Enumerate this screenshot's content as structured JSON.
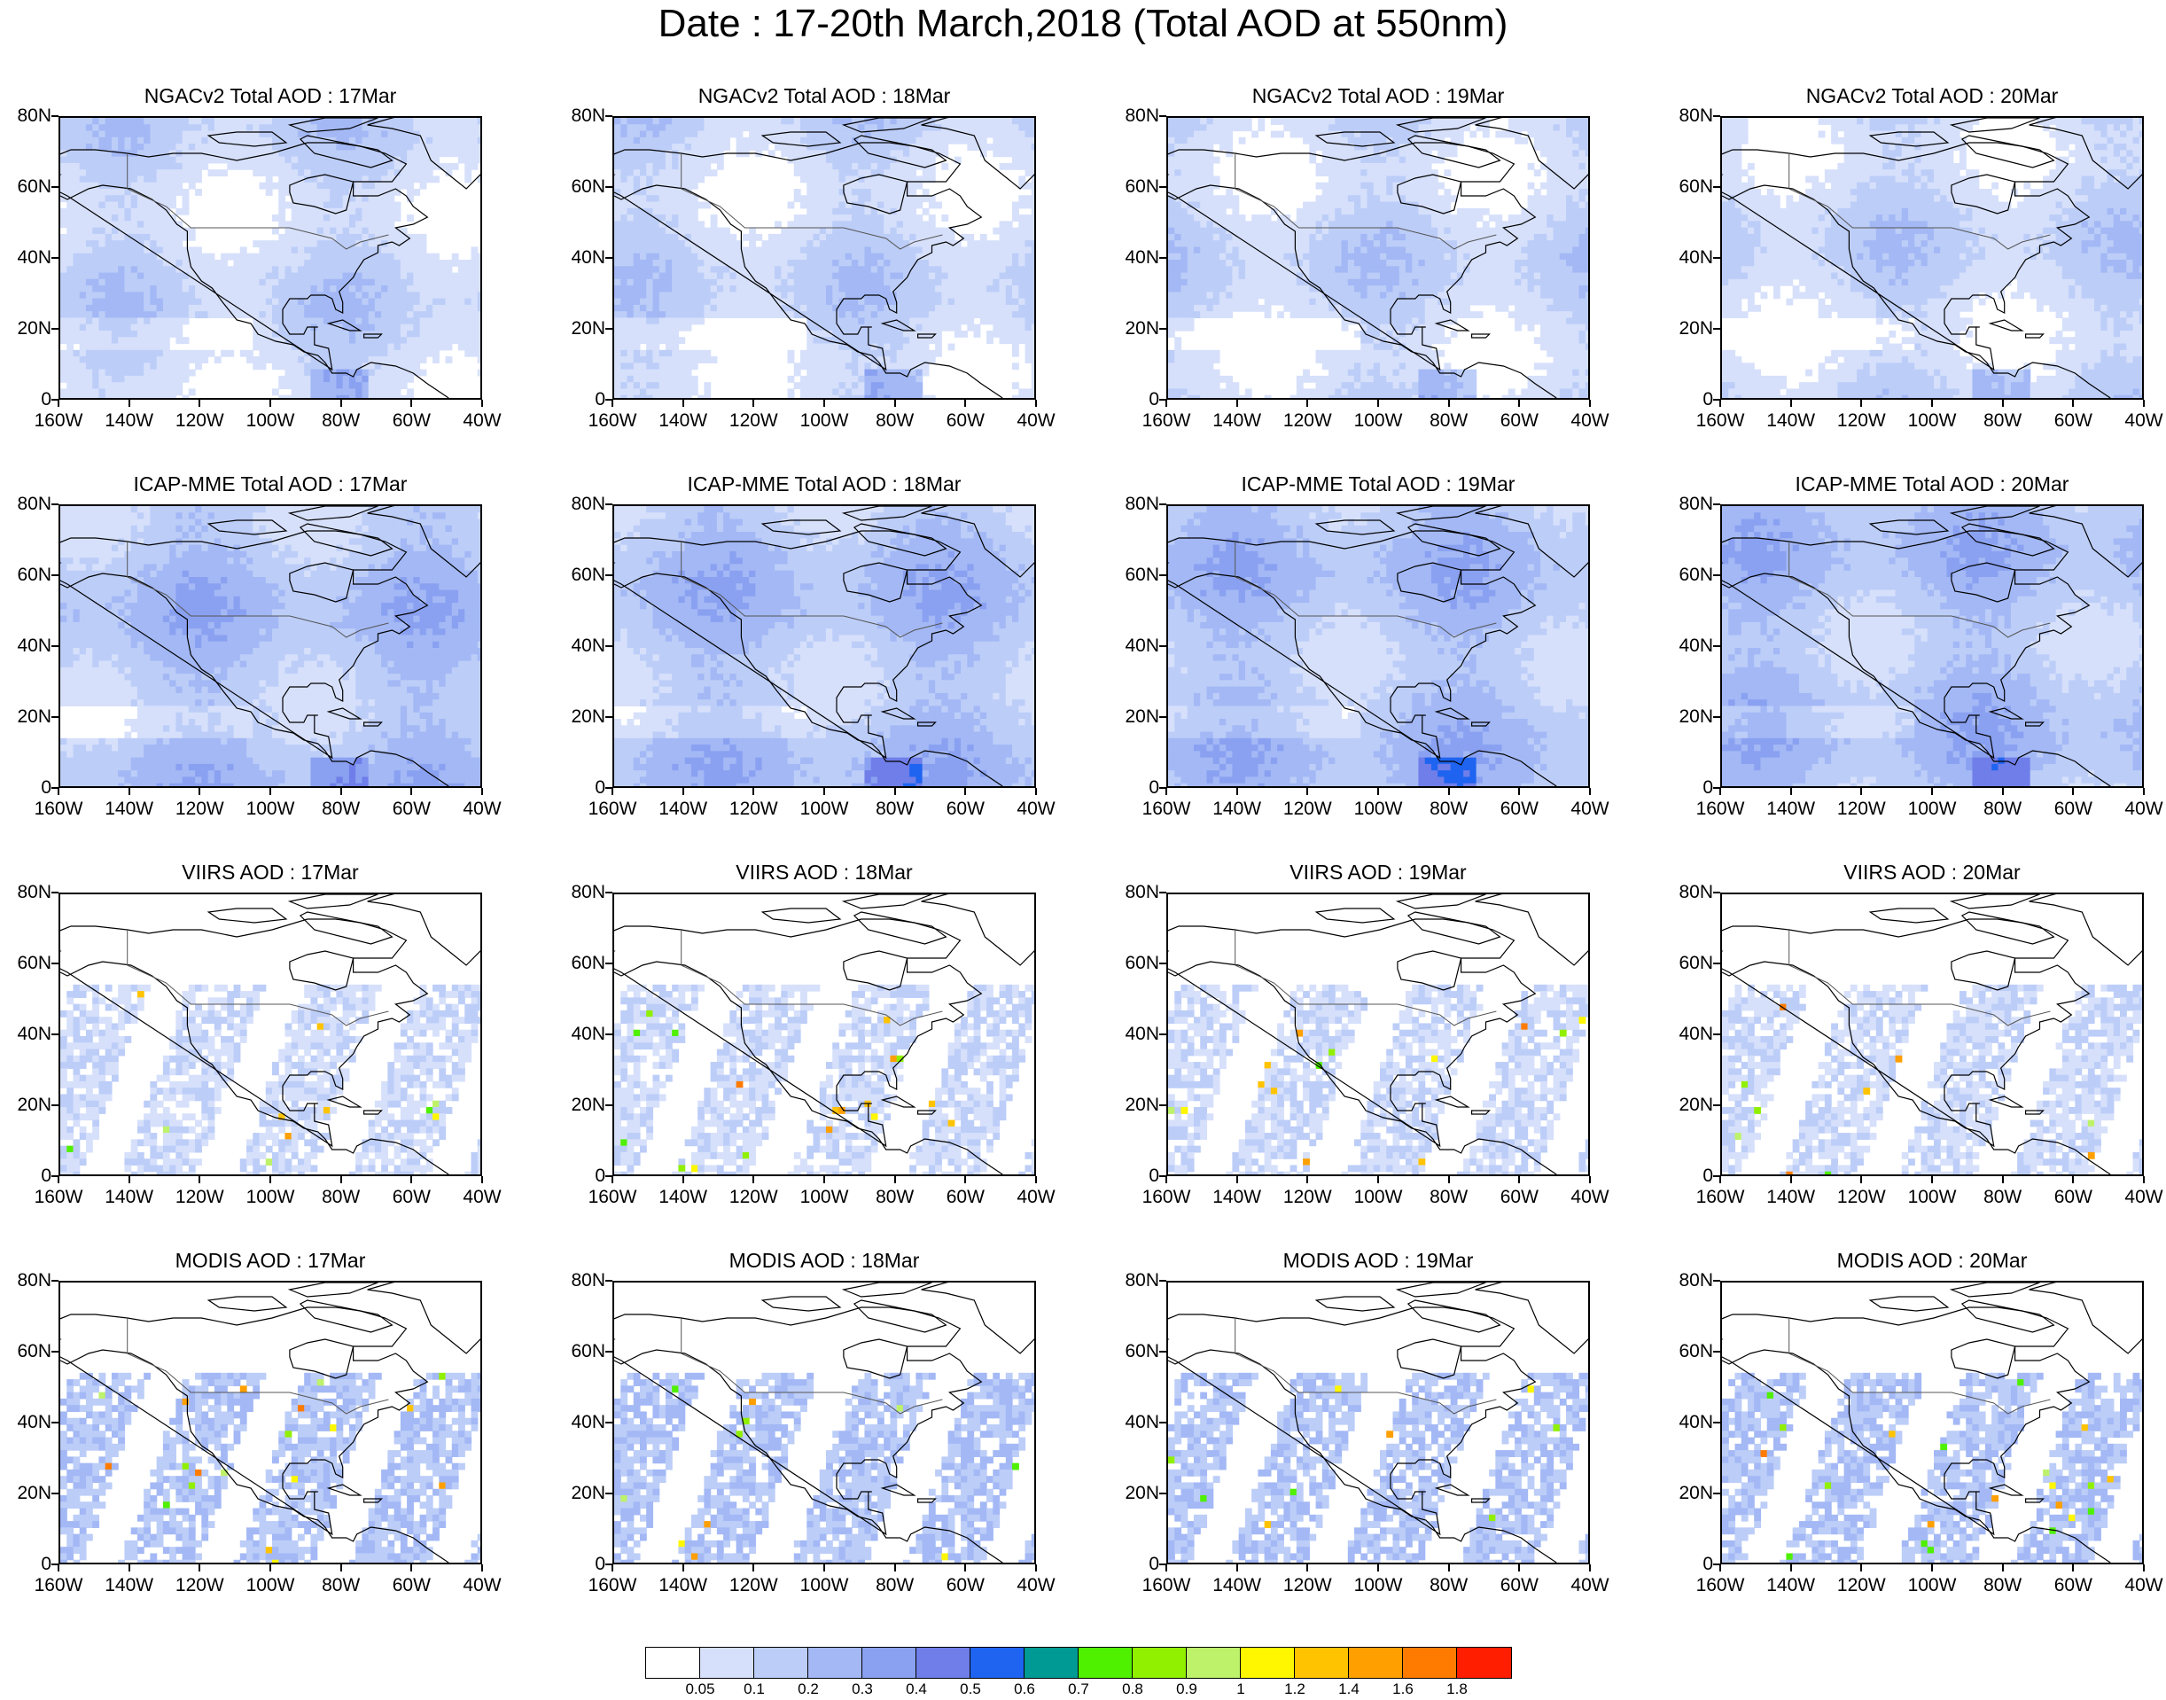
{
  "title": "Date : 17-20th March,2018 (Total AOD at 550nm)",
  "lat_labels": [
    "80N",
    "60N",
    "40N",
    "20N",
    "0"
  ],
  "lon_labels": [
    "160W",
    "140W",
    "120W",
    "100W",
    "80W",
    "60W",
    "40W"
  ],
  "panels": [
    {
      "title": "NGACv2 Total AOD : 17Mar",
      "field_type": "model",
      "base_level": 1
    },
    {
      "title": "NGACv2 Total AOD : 18Mar",
      "field_type": "model",
      "base_level": 1
    },
    {
      "title": "NGACv2 Total AOD : 19Mar",
      "field_type": "model",
      "base_level": 1
    },
    {
      "title": "NGACv2 Total AOD : 20Mar",
      "field_type": "model",
      "base_level": 1
    },
    {
      "title": "ICAP-MME Total AOD : 17Mar",
      "field_type": "model",
      "base_level": 2
    },
    {
      "title": "ICAP-MME Total AOD : 18Mar",
      "field_type": "model",
      "base_level": 2
    },
    {
      "title": "ICAP-MME Total AOD : 19Mar",
      "field_type": "model",
      "base_level": 2
    },
    {
      "title": "ICAP-MME Total AOD : 20Mar",
      "field_type": "model",
      "base_level": 2
    },
    {
      "title": "VIIRS AOD : 17Mar",
      "field_type": "satellite",
      "base_level": 1
    },
    {
      "title": "VIIRS AOD : 18Mar",
      "field_type": "satellite",
      "base_level": 1
    },
    {
      "title": "VIIRS AOD : 19Mar",
      "field_type": "satellite",
      "base_level": 1
    },
    {
      "title": "VIIRS AOD : 20Mar",
      "field_type": "satellite",
      "base_level": 1
    },
    {
      "title": "MODIS AOD : 17Mar",
      "field_type": "satellite",
      "base_level": 2
    },
    {
      "title": "MODIS AOD : 18Mar",
      "field_type": "satellite",
      "base_level": 2
    },
    {
      "title": "MODIS AOD : 19Mar",
      "field_type": "satellite",
      "base_level": 2
    },
    {
      "title": "MODIS AOD : 20Mar",
      "field_type": "satellite",
      "base_level": 2
    }
  ],
  "colorbar": {
    "colors": [
      "#ffffff",
      "#d6e0fb",
      "#bccdf8",
      "#a3b8f5",
      "#8aa1f1",
      "#6f7ee9",
      "#1f64f0",
      "#009a94",
      "#4ff000",
      "#90f000",
      "#bdf26a",
      "#fff700",
      "#ffc300",
      "#ff9f00",
      "#ff7b00",
      "#ff1e00"
    ],
    "labels": [
      "0.05",
      "0.1",
      "0.2",
      "0.3",
      "0.4",
      "0.5",
      "0.6",
      "0.7",
      "0.8",
      "0.9",
      "1",
      "1.2",
      "1.4",
      "1.6",
      "1.8"
    ]
  }
}
